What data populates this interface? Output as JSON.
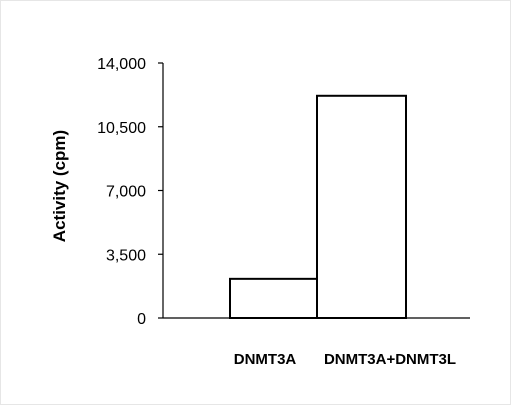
{
  "chart_data": {
    "type": "bar",
    "categories": [
      "DNMT3A",
      "DNMT3A+DNMT3L"
    ],
    "values": [
      2150,
      12200
    ],
    "title": "",
    "xlabel": "",
    "ylabel": "Activity  (cpm)",
    "ylim": [
      0,
      14000
    ],
    "yticks": [
      0,
      3500,
      7000,
      10500,
      14000
    ],
    "ytick_labels": [
      "0",
      "3,500",
      "7,000",
      "10,500",
      "14,000"
    ],
    "grid": false,
    "legend": "none",
    "bar_fill": "#ffffff",
    "bar_stroke": "#000000"
  }
}
